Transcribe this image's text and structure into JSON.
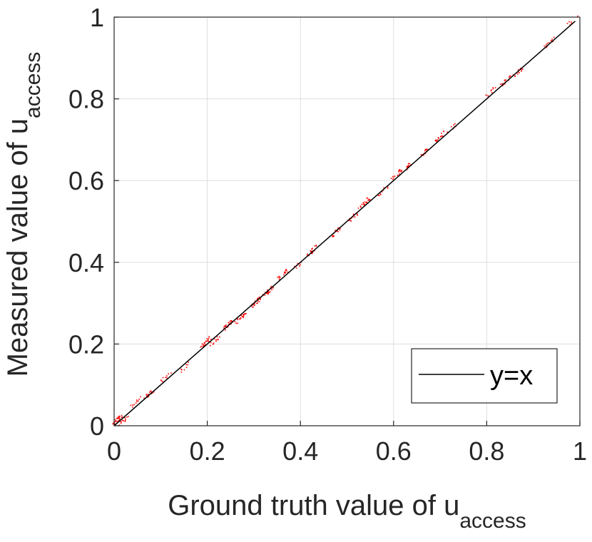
{
  "chart_data": {
    "type": "scatter",
    "xlabel": "Ground truth value of u",
    "xlabel_subscript": "access",
    "ylabel": "Measured value of u",
    "ylabel_subscript": "access",
    "xlim": [
      0,
      1
    ],
    "ylim": [
      0,
      1
    ],
    "xticks": [
      "0",
      "0.2",
      "0.4",
      "0.6",
      "0.8",
      "1"
    ],
    "yticks": [
      "0",
      "0.2",
      "0.4",
      "0.6",
      "0.8",
      "1"
    ],
    "grid": true,
    "legend": {
      "placement": "bottom-right",
      "entries": [
        "y=x"
      ]
    },
    "reference_line": {
      "name": "y=x",
      "color": "#000000",
      "from": [
        0,
        0
      ],
      "to": [
        0.99,
        0.99
      ]
    },
    "series": {
      "color": "#ff0000",
      "clusters": [
        {
          "x": 0.005,
          "y": 0.015,
          "n": 30
        },
        {
          "x": 0.02,
          "y": 0.015,
          "n": 14
        },
        {
          "x": 0.045,
          "y": 0.06,
          "n": 10
        },
        {
          "x": 0.075,
          "y": 0.08,
          "n": 18
        },
        {
          "x": 0.11,
          "y": 0.12,
          "n": 10
        },
        {
          "x": 0.15,
          "y": 0.145,
          "n": 8
        },
        {
          "x": 0.195,
          "y": 0.205,
          "n": 24
        },
        {
          "x": 0.215,
          "y": 0.21,
          "n": 12
        },
        {
          "x": 0.245,
          "y": 0.25,
          "n": 22
        },
        {
          "x": 0.27,
          "y": 0.265,
          "n": 20
        },
        {
          "x": 0.305,
          "y": 0.305,
          "n": 28
        },
        {
          "x": 0.33,
          "y": 0.33,
          "n": 22
        },
        {
          "x": 0.36,
          "y": 0.37,
          "n": 16
        },
        {
          "x": 0.39,
          "y": 0.39,
          "n": 8
        },
        {
          "x": 0.425,
          "y": 0.43,
          "n": 18
        },
        {
          "x": 0.475,
          "y": 0.475,
          "n": 14
        },
        {
          "x": 0.51,
          "y": 0.51,
          "n": 16
        },
        {
          "x": 0.535,
          "y": 0.545,
          "n": 20
        },
        {
          "x": 0.575,
          "y": 0.575,
          "n": 10
        },
        {
          "x": 0.605,
          "y": 0.615,
          "n": 16
        },
        {
          "x": 0.625,
          "y": 0.63,
          "n": 14
        },
        {
          "x": 0.67,
          "y": 0.675,
          "n": 14
        },
        {
          "x": 0.7,
          "y": 0.71,
          "n": 16
        },
        {
          "x": 0.725,
          "y": 0.73,
          "n": 8
        },
        {
          "x": 0.81,
          "y": 0.82,
          "n": 10
        },
        {
          "x": 0.84,
          "y": 0.845,
          "n": 18
        },
        {
          "x": 0.865,
          "y": 0.865,
          "n": 14
        },
        {
          "x": 0.935,
          "y": 0.94,
          "n": 12
        },
        {
          "x": 0.985,
          "y": 0.995,
          "n": 6
        }
      ]
    }
  }
}
